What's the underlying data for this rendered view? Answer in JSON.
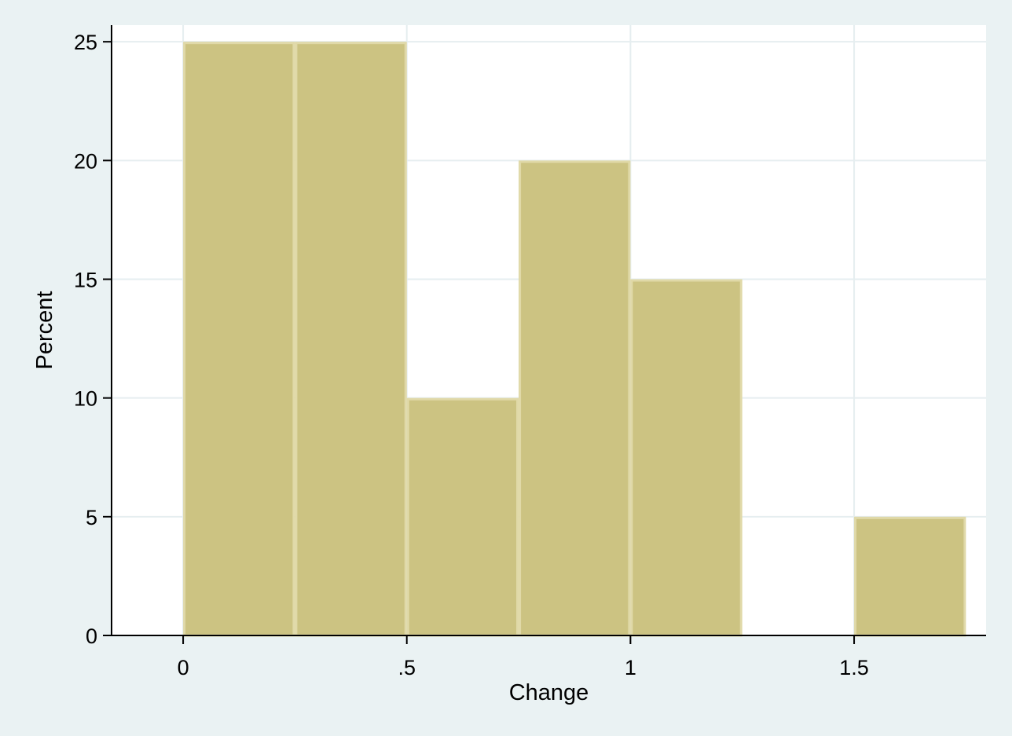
{
  "chart_data": {
    "type": "bar",
    "title": "",
    "xlabel": "Change",
    "ylabel": "Percent",
    "xlim": [
      -0.16,
      1.795
    ],
    "ylim": [
      0,
      25.7
    ],
    "bin_width": 0.25,
    "bars": [
      {
        "x0": 0.0,
        "x1": 0.25,
        "value": 25
      },
      {
        "x0": 0.25,
        "x1": 0.5,
        "value": 25
      },
      {
        "x0": 0.5,
        "x1": 0.75,
        "value": 10
      },
      {
        "x0": 0.75,
        "x1": 1.0,
        "value": 20
      },
      {
        "x0": 1.0,
        "x1": 1.25,
        "value": 15
      },
      {
        "x0": 1.5,
        "x1": 1.75,
        "value": 5
      }
    ],
    "x_ticks": [
      {
        "value": 0,
        "label": "0"
      },
      {
        "value": 0.5,
        "label": ".5"
      },
      {
        "value": 1,
        "label": "1"
      },
      {
        "value": 1.5,
        "label": "1.5"
      }
    ],
    "y_ticks": [
      {
        "value": 0,
        "label": "0"
      },
      {
        "value": 5,
        "label": "5"
      },
      {
        "value": 10,
        "label": "10"
      },
      {
        "value": 15,
        "label": "15"
      },
      {
        "value": 20,
        "label": "20"
      },
      {
        "value": 25,
        "label": "25"
      }
    ],
    "grid": true,
    "legend": "none",
    "colors": {
      "background": "#eaf2f3",
      "plot_area": "#ffffff",
      "bar_fill": "#ccc382",
      "bar_edge": "#e0d9a8",
      "grid": "#e6eef0",
      "axis": "#000000"
    }
  }
}
